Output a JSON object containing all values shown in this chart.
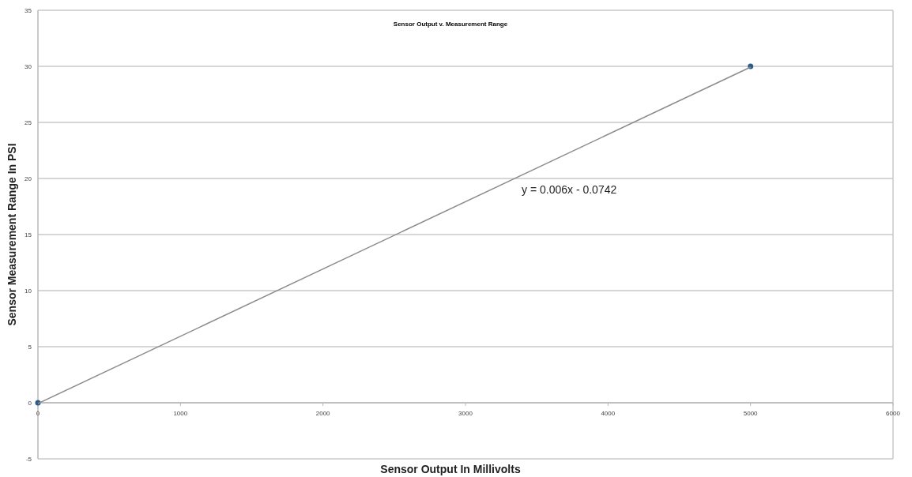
{
  "chart_data": {
    "type": "scatter",
    "title": "Sensor Output v. Measurement Range",
    "xlabel": "Sensor Output In Millivolts",
    "ylabel": "Sensor Measurement Range In PSI",
    "x": [
      0,
      5000
    ],
    "series": [
      {
        "color": "#2e5c8a",
        "values": [
          0,
          30
        ],
        "marker": "circle"
      },
      {
        "type": "line",
        "color": "#8c8c8c",
        "values": [
          -0.07,
          29.93
        ],
        "marker": "none"
      }
    ],
    "xlim": [
      0,
      6000
    ],
    "xticks": [
      0,
      1000,
      2000,
      3000,
      4000,
      5000,
      6000
    ],
    "ylim": [
      -5,
      35
    ],
    "yticks": [
      -5,
      0,
      5,
      10,
      15,
      20,
      25,
      30,
      35
    ],
    "grid": "y",
    "annotations": [
      "y = 0.006x - 0.0742"
    ]
  }
}
